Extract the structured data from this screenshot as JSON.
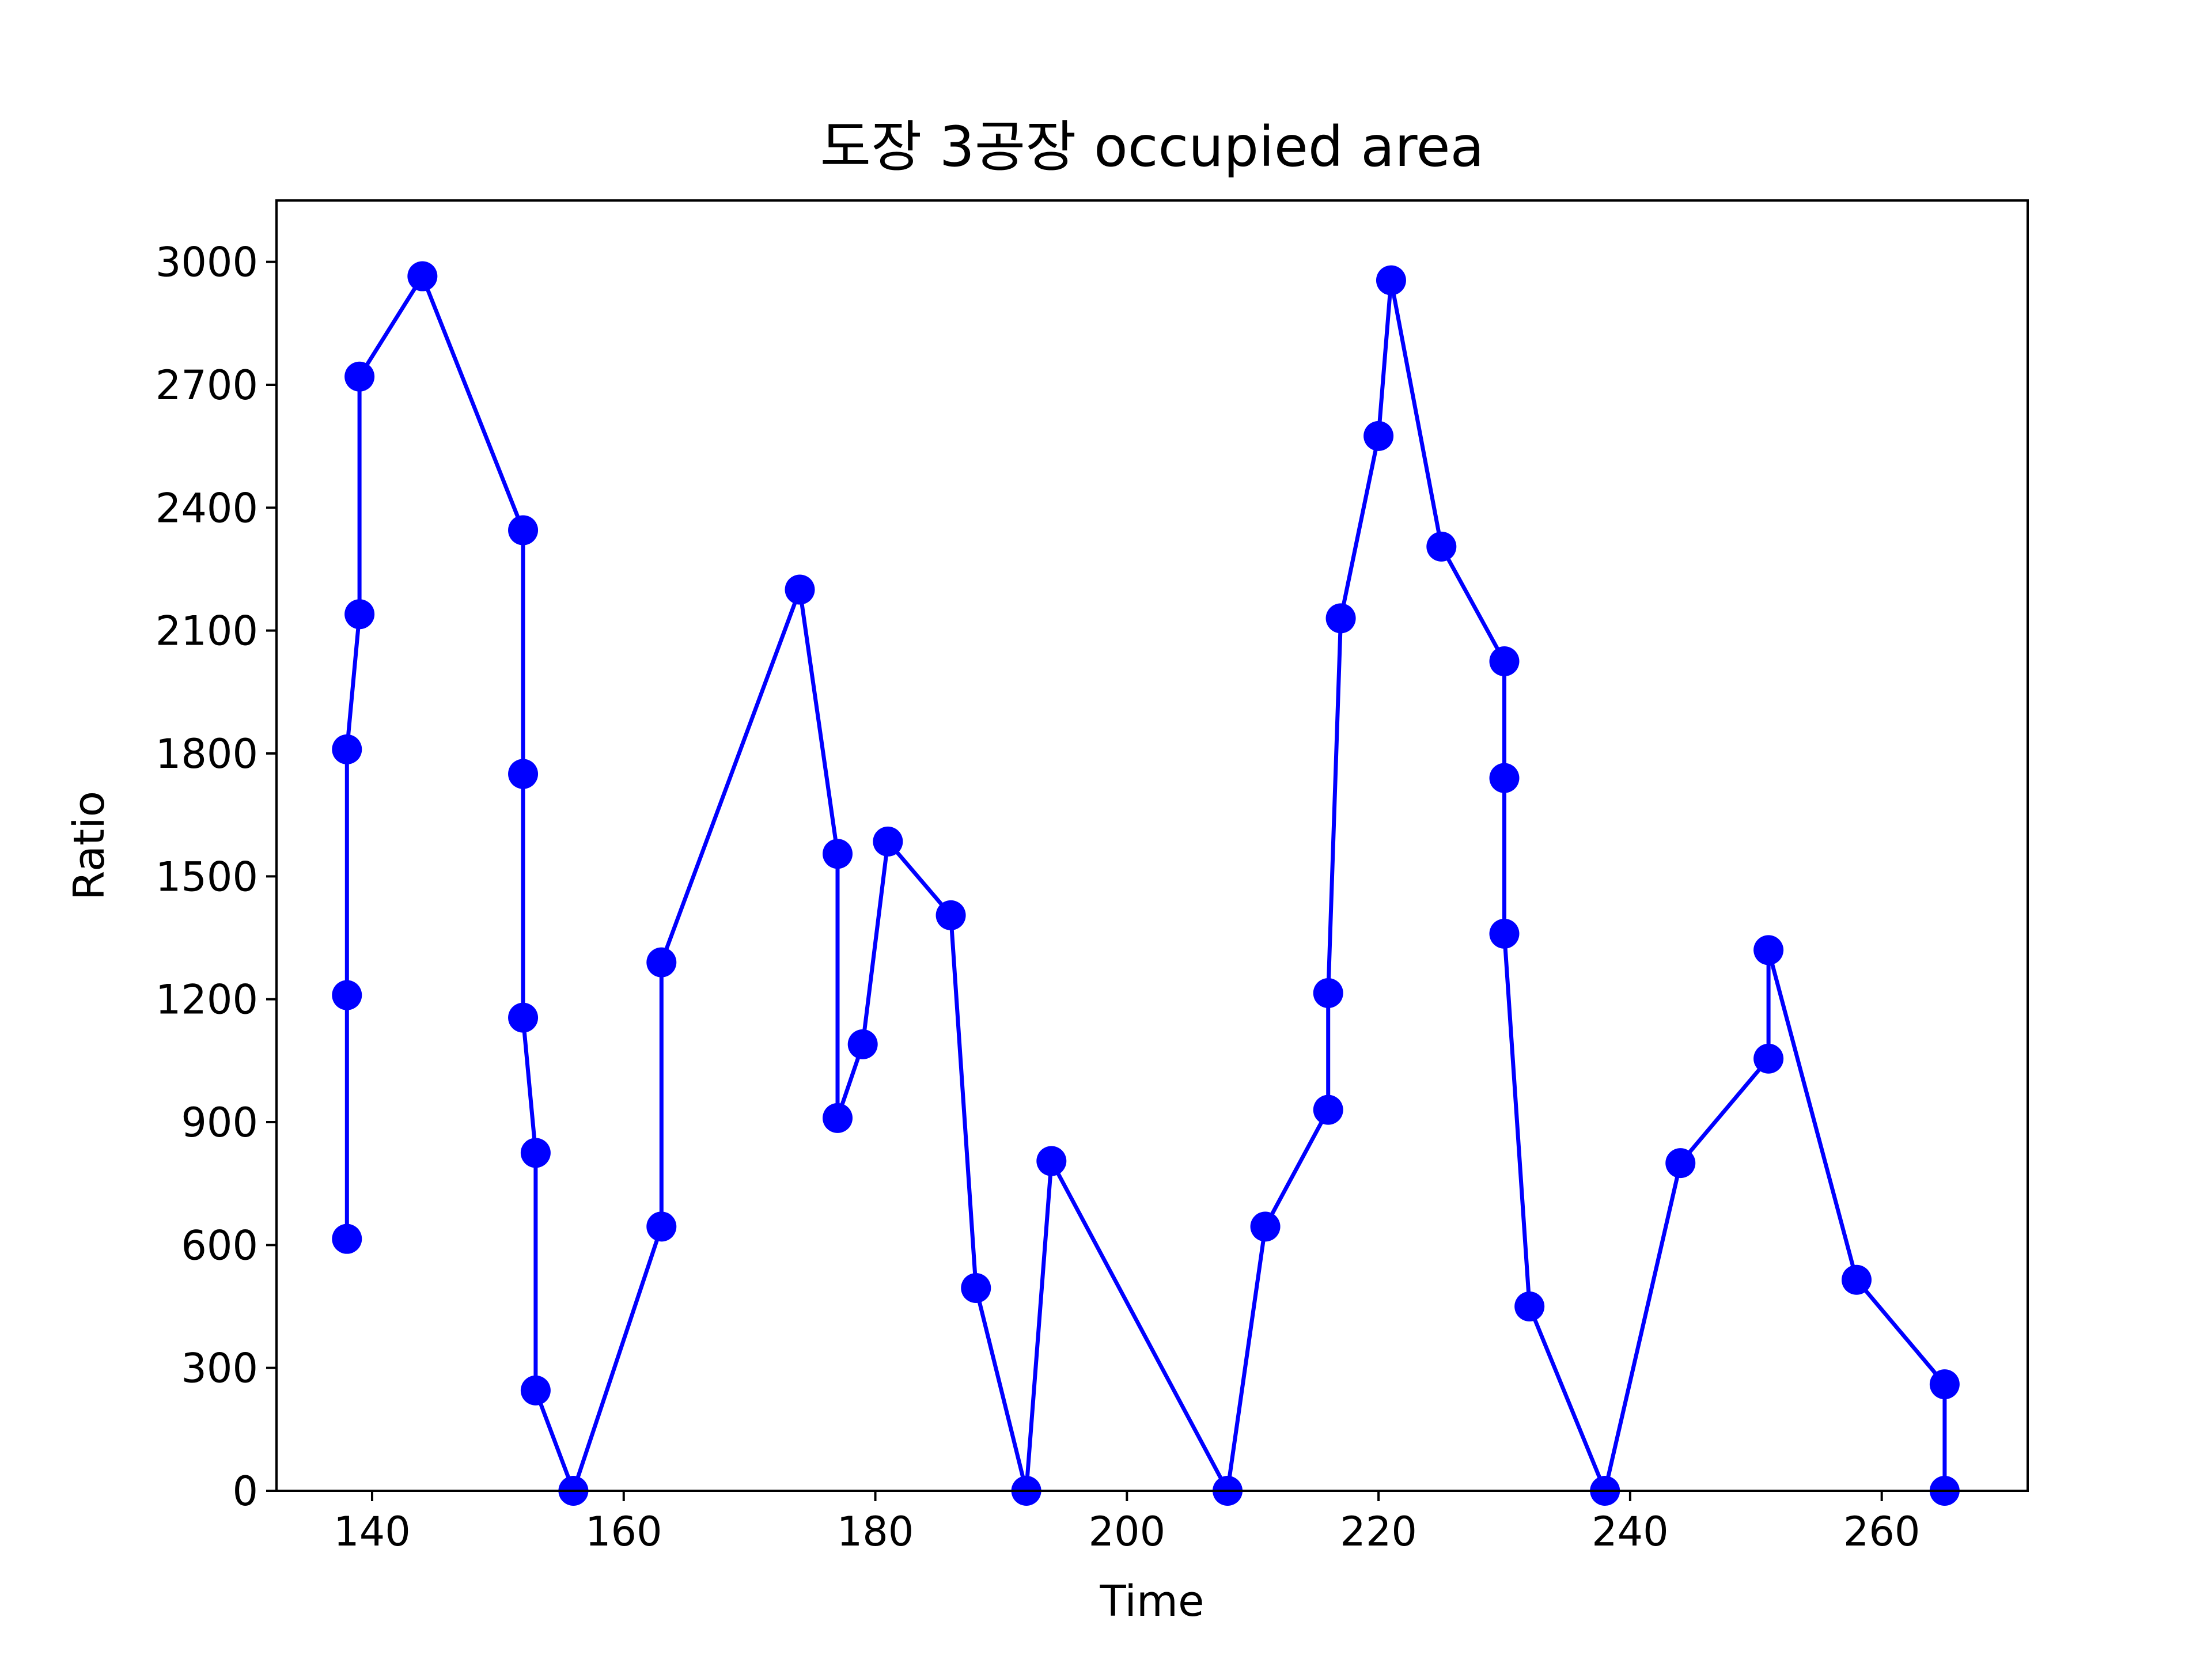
{
  "chart_data": {
    "type": "line",
    "title": "도장 3공장 occupied area",
    "xlabel": "Time",
    "ylabel": "Ratio",
    "xlim": [
      132.4,
      271.6
    ],
    "ylim": [
      0,
      3150
    ],
    "xticks": [
      140,
      160,
      180,
      200,
      220,
      240,
      260
    ],
    "yticks": [
      0,
      300,
      600,
      900,
      1200,
      1500,
      1800,
      2100,
      2400,
      2700,
      3000
    ],
    "grid": false,
    "colors": {
      "line": "#0000ff",
      "marker": "#0000ff",
      "axes": "#000000"
    },
    "series": [
      {
        "marker": "circle",
        "x": [
          138,
          138,
          138,
          139,
          139,
          144,
          152,
          152,
          152,
          153,
          153,
          156,
          163,
          163,
          174,
          177,
          177,
          179,
          181,
          186,
          188,
          192,
          194,
          208,
          211,
          216,
          216,
          217,
          220,
          221,
          225,
          230,
          230,
          230,
          232,
          238,
          244,
          251,
          251,
          258,
          265,
          265
        ],
        "y": [
          615,
          1210,
          1810,
          2140,
          2720,
          2965,
          2345,
          1750,
          1155,
          825,
          245,
          0,
          645,
          1290,
          2200,
          1555,
          910,
          1090,
          1585,
          1405,
          495,
          0,
          805,
          0,
          645,
          930,
          1215,
          2130,
          2575,
          2955,
          2305,
          2025,
          1740,
          1360,
          450,
          0,
          800,
          1055,
          1320,
          515,
          260,
          0
        ]
      }
    ]
  }
}
